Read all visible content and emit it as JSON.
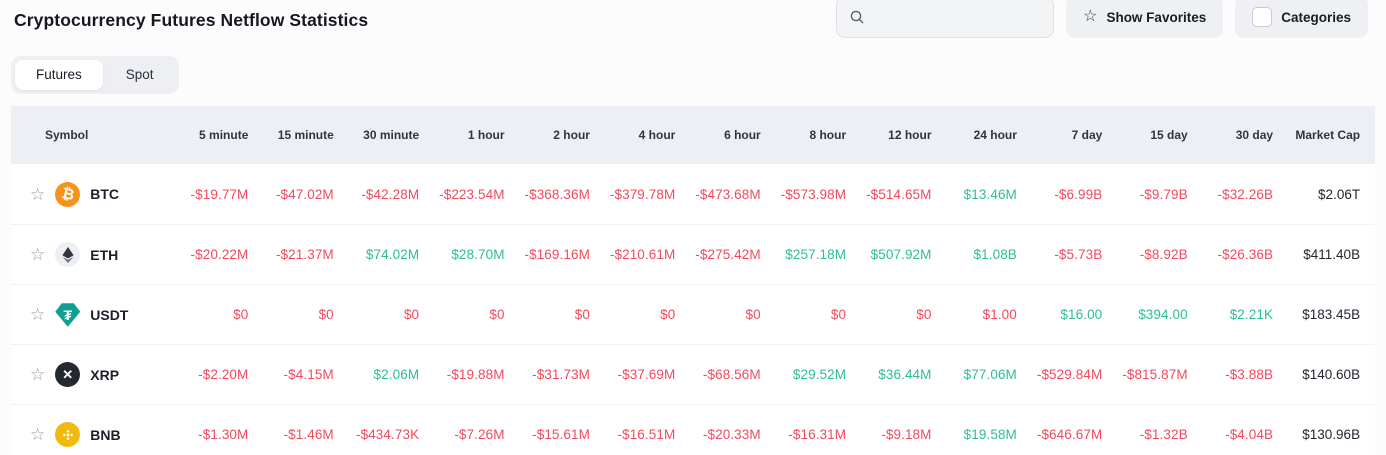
{
  "header": {
    "title": "Cryptocurrency Futures Netflow Statistics",
    "search_placeholder": "",
    "search_value": "",
    "show_favorites_label": "Show Favorites",
    "categories_label": "Categories"
  },
  "tabs": [
    {
      "label": "Futures",
      "active": true
    },
    {
      "label": "Spot",
      "active": false
    }
  ],
  "colors": {
    "negative": "#F2495D",
    "positive": "#2CBD97",
    "btc": "#F7931A",
    "eth_bg": "#ECEFF3",
    "eth_glyph": "#32353C",
    "usdt": "#10A08E",
    "xrp_bg": "#23292F",
    "bnb": "#F0B90B",
    "header_bg": "#EDEFF4"
  },
  "table": {
    "columns": [
      "Symbol",
      "5 minute",
      "15 minute",
      "30 minute",
      "1 hour",
      "2 hour",
      "4 hour",
      "6 hour",
      "8 hour",
      "12 hour",
      "24 hour",
      "7 day",
      "15 day",
      "30 day",
      "Market Cap"
    ],
    "rows": [
      {
        "symbol": "BTC",
        "icon": "btc",
        "market_cap": "$2.06T",
        "values": [
          {
            "t": "-$19.77M",
            "c": "neg"
          },
          {
            "t": "-$47.02M",
            "c": "neg"
          },
          {
            "t": "-$42.28M",
            "c": "neg"
          },
          {
            "t": "-$223.54M",
            "c": "neg"
          },
          {
            "t": "-$368.36M",
            "c": "neg"
          },
          {
            "t": "-$379.78M",
            "c": "neg"
          },
          {
            "t": "-$473.68M",
            "c": "neg"
          },
          {
            "t": "-$573.98M",
            "c": "neg"
          },
          {
            "t": "-$514.65M",
            "c": "neg"
          },
          {
            "t": "$13.46M",
            "c": "pos"
          },
          {
            "t": "-$6.99B",
            "c": "neg"
          },
          {
            "t": "-$9.79B",
            "c": "neg"
          },
          {
            "t": "-$32.26B",
            "c": "neg"
          }
        ]
      },
      {
        "symbol": "ETH",
        "icon": "eth",
        "market_cap": "$411.40B",
        "values": [
          {
            "t": "-$20.22M",
            "c": "neg"
          },
          {
            "t": "-$21.37M",
            "c": "neg"
          },
          {
            "t": "$74.02M",
            "c": "pos"
          },
          {
            "t": "$28.70M",
            "c": "pos"
          },
          {
            "t": "-$169.16M",
            "c": "neg"
          },
          {
            "t": "-$210.61M",
            "c": "neg"
          },
          {
            "t": "-$275.42M",
            "c": "neg"
          },
          {
            "t": "$257.18M",
            "c": "pos"
          },
          {
            "t": "$507.92M",
            "c": "pos"
          },
          {
            "t": "$1.08B",
            "c": "pos"
          },
          {
            "t": "-$5.73B",
            "c": "neg"
          },
          {
            "t": "-$8.92B",
            "c": "neg"
          },
          {
            "t": "-$26.36B",
            "c": "neg"
          }
        ]
      },
      {
        "symbol": "USDT",
        "icon": "usdt",
        "market_cap": "$183.45B",
        "values": [
          {
            "t": "$0",
            "c": "neg"
          },
          {
            "t": "$0",
            "c": "neg"
          },
          {
            "t": "$0",
            "c": "neg"
          },
          {
            "t": "$0",
            "c": "neg"
          },
          {
            "t": "$0",
            "c": "neg"
          },
          {
            "t": "$0",
            "c": "neg"
          },
          {
            "t": "$0",
            "c": "neg"
          },
          {
            "t": "$0",
            "c": "neg"
          },
          {
            "t": "$0",
            "c": "neg"
          },
          {
            "t": "$1.00",
            "c": "neg"
          },
          {
            "t": "$16.00",
            "c": "pos"
          },
          {
            "t": "$394.00",
            "c": "pos"
          },
          {
            "t": "$2.21K",
            "c": "pos"
          }
        ]
      },
      {
        "symbol": "XRP",
        "icon": "xrp",
        "market_cap": "$140.60B",
        "values": [
          {
            "t": "-$2.20M",
            "c": "neg"
          },
          {
            "t": "-$4.15M",
            "c": "neg"
          },
          {
            "t": "$2.06M",
            "c": "pos"
          },
          {
            "t": "-$19.88M",
            "c": "neg"
          },
          {
            "t": "-$31.73M",
            "c": "neg"
          },
          {
            "t": "-$37.69M",
            "c": "neg"
          },
          {
            "t": "-$68.56M",
            "c": "neg"
          },
          {
            "t": "$29.52M",
            "c": "pos"
          },
          {
            "t": "$36.44M",
            "c": "pos"
          },
          {
            "t": "$77.06M",
            "c": "pos"
          },
          {
            "t": "-$529.84M",
            "c": "neg"
          },
          {
            "t": "-$815.87M",
            "c": "neg"
          },
          {
            "t": "-$3.88B",
            "c": "neg"
          }
        ]
      },
      {
        "symbol": "BNB",
        "icon": "bnb",
        "market_cap": "$130.96B",
        "values": [
          {
            "t": "-$1.30M",
            "c": "neg"
          },
          {
            "t": "-$1.46M",
            "c": "neg"
          },
          {
            "t": "-$434.73K",
            "c": "neg"
          },
          {
            "t": "-$7.26M",
            "c": "neg"
          },
          {
            "t": "-$15.61M",
            "c": "neg"
          },
          {
            "t": "-$16.51M",
            "c": "neg"
          },
          {
            "t": "-$20.33M",
            "c": "neg"
          },
          {
            "t": "-$16.31M",
            "c": "neg"
          },
          {
            "t": "-$9.18M",
            "c": "neg"
          },
          {
            "t": "$19.58M",
            "c": "pos"
          },
          {
            "t": "-$646.67M",
            "c": "neg"
          },
          {
            "t": "-$1.32B",
            "c": "neg"
          },
          {
            "t": "-$4.04B",
            "c": "neg"
          }
        ]
      }
    ],
    "favorite_star_glyph": "☆"
  }
}
